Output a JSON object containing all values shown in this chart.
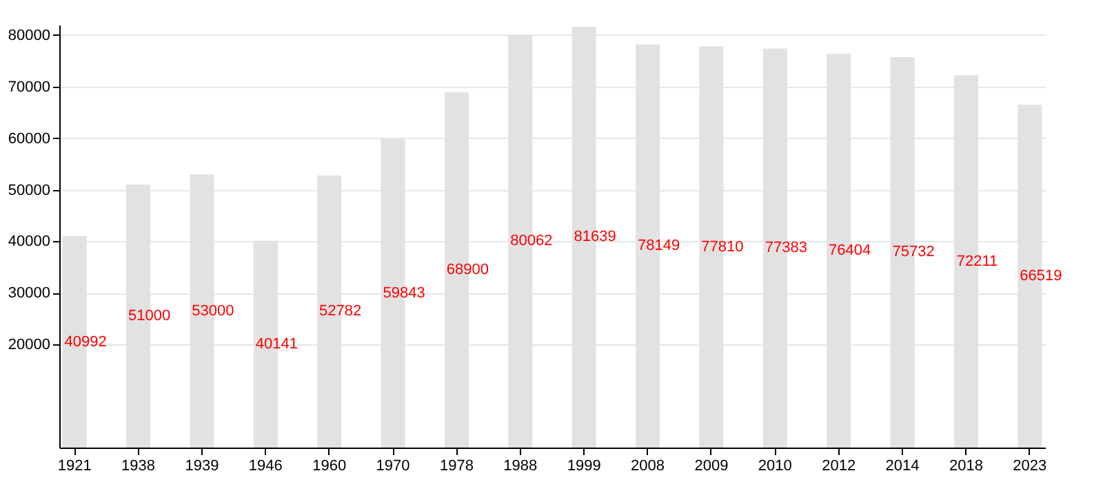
{
  "chart_data": {
    "type": "bar",
    "categories": [
      "1921",
      "1938",
      "1939",
      "1946",
      "1960",
      "1970",
      "1978",
      "1988",
      "1999",
      "2008",
      "2009",
      "2010",
      "2012",
      "2014",
      "2018",
      "2023"
    ],
    "values": [
      40992,
      51000,
      53000,
      40141,
      52782,
      59843,
      68900,
      80062,
      81639,
      78149,
      77810,
      77383,
      76404,
      75732,
      72211,
      66519
    ],
    "color": "#e2e2e2",
    "data_labels": true,
    "ylim": [
      0,
      82000
    ],
    "yticks": [
      20000,
      30000,
      40000,
      50000,
      60000,
      70000,
      80000
    ],
    "grid": "y"
  }
}
